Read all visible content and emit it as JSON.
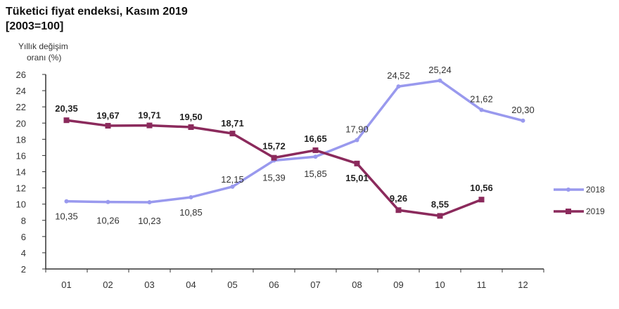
{
  "title_line1": "Tüketici fiyat endeksi, Kasım 2019",
  "title_line2": "[2003=100]",
  "ylabel_line1": "Yıllık  değişim",
  "ylabel_line2": "oranı (%)",
  "colors": {
    "s2018": "#9999ee",
    "s2019": "#8b2a5c",
    "axis": "#333333"
  },
  "chart_data": {
    "type": "line",
    "title": "Tüketici fiyat endeksi, Kasım 2019 [2003=100]",
    "xlabel": "",
    "ylabel": "Yıllık değişim oranı (%)",
    "categories": [
      "01",
      "02",
      "03",
      "04",
      "05",
      "06",
      "07",
      "08",
      "09",
      "10",
      "11",
      "12"
    ],
    "ylim": [
      2,
      26
    ],
    "yticks": [
      2,
      4,
      6,
      8,
      10,
      12,
      14,
      16,
      18,
      20,
      22,
      24,
      26
    ],
    "grid": false,
    "legend_position": "right",
    "series": [
      {
        "name": "2018",
        "values": [
          10.35,
          10.26,
          10.23,
          10.85,
          12.15,
          15.39,
          15.85,
          17.9,
          24.52,
          25.24,
          21.62,
          20.3
        ],
        "labels": [
          "10,35",
          "10,26",
          "10,23",
          "10,85",
          "12,15",
          "15,39",
          "15,85",
          "17,90",
          "24,52",
          "25,24",
          "21,62",
          "20,30"
        ]
      },
      {
        "name": "2019",
        "values": [
          20.35,
          19.67,
          19.71,
          19.5,
          18.71,
          15.72,
          16.65,
          15.01,
          9.26,
          8.55,
          10.56
        ],
        "labels": [
          "20,35",
          "19,67",
          "19,71",
          "19,50",
          "18,71",
          "15,72",
          "16,65",
          "15,01",
          "9,26",
          "8,55",
          "10,56"
        ]
      }
    ]
  }
}
